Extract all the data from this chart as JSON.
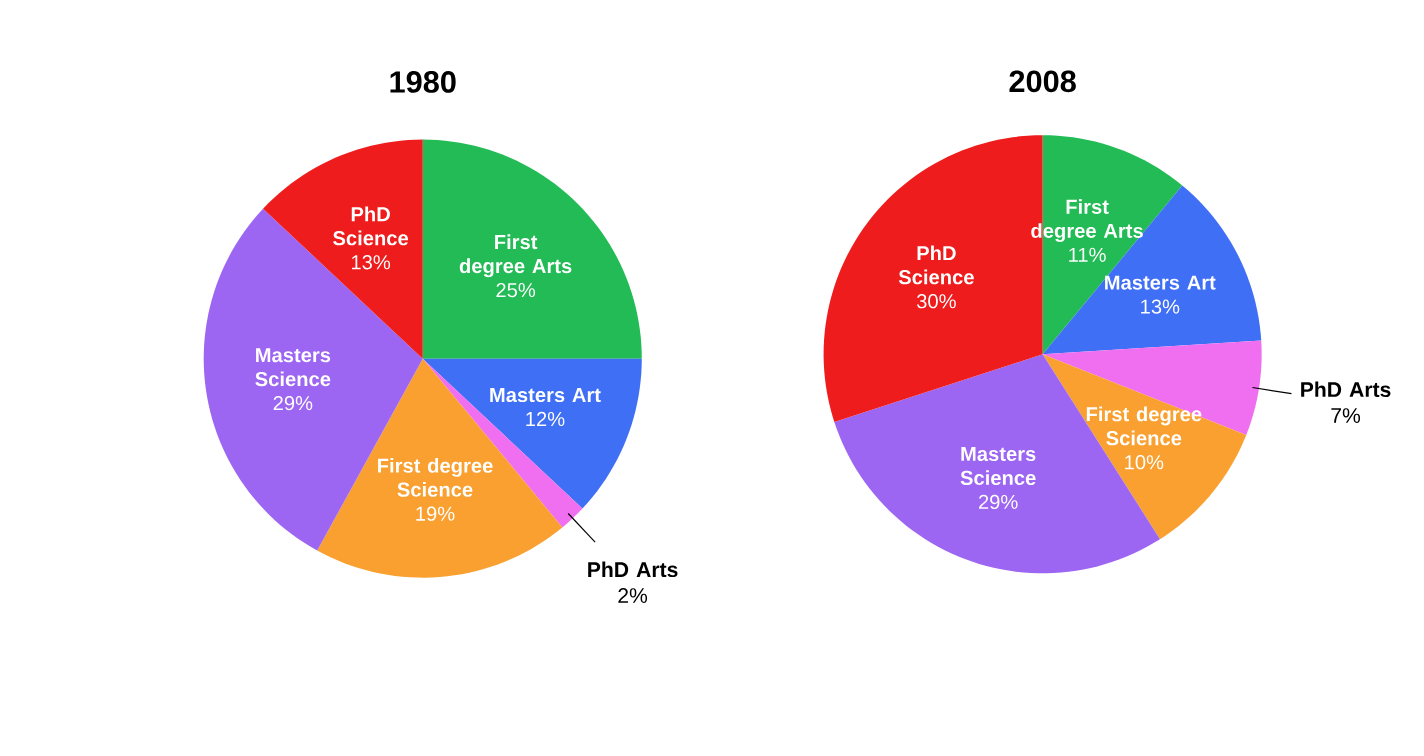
{
  "chart_data": [
    {
      "type": "pie",
      "title": "1980",
      "categories": [
        "First degree Arts",
        "Masters Art",
        "PhD Arts",
        "First degree Science",
        "Masters Science",
        "PhD Science"
      ],
      "values": [
        25,
        12,
        2,
        19,
        29,
        13
      ],
      "value_labels": [
        "25%",
        "12%",
        "2%",
        "19%",
        "29%",
        "13%"
      ],
      "colors": [
        "#22bb55",
        "#3f6ff5",
        "#f06ef0",
        "#f9a030",
        "#9d66f2",
        "#ee1c1c"
      ]
    },
    {
      "type": "pie",
      "title": "2008",
      "categories": [
        "First degree Arts",
        "Masters Art",
        "PhD Arts",
        "First degree Science",
        "Masters Science",
        "PhD Science"
      ],
      "values": [
        11,
        13,
        7,
        10,
        29,
        30
      ],
      "value_labels": [
        "11%",
        "13%",
        "7%",
        "10%",
        "29%",
        "30%"
      ],
      "colors": [
        "#22bb55",
        "#3f6ff5",
        "#f06ef0",
        "#f9a030",
        "#9d66f2",
        "#ee1c1c"
      ]
    }
  ]
}
